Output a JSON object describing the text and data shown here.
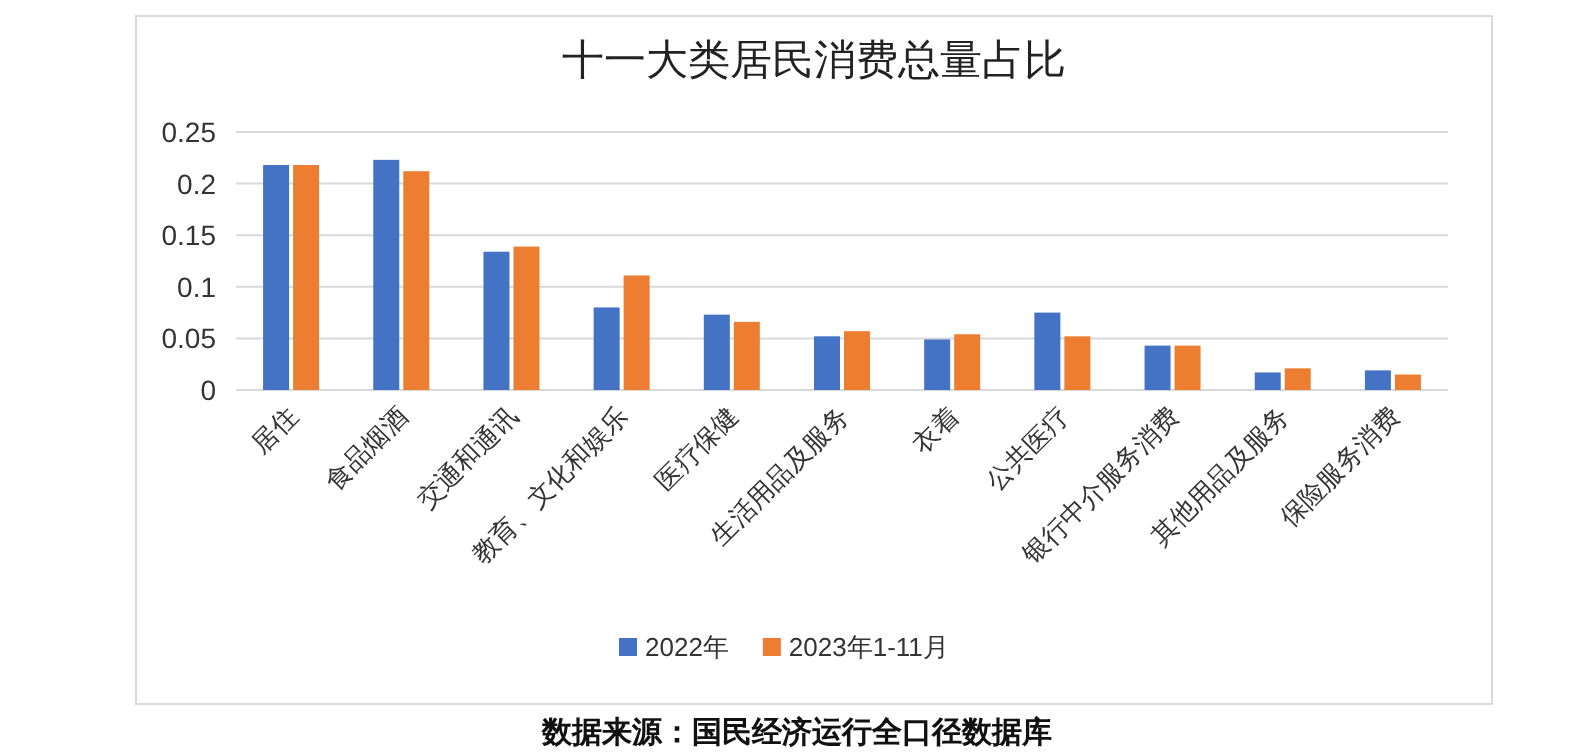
{
  "chart_data": {
    "type": "bar",
    "title": "十一大类居民消费总量占比",
    "categories": [
      "居住",
      "食品烟酒",
      "交通和通讯",
      "教育、文化和娱乐",
      "医疗保健",
      "生活用品及服务",
      "衣着",
      "公共医疗",
      "银行中介服务消费",
      "其他用品及服务",
      "保险服务消费"
    ],
    "series": [
      {
        "name": "2022年",
        "color": "#4472c4",
        "values": [
          0.218,
          0.223,
          0.134,
          0.08,
          0.073,
          0.052,
          0.049,
          0.075,
          0.043,
          0.017,
          0.019
        ]
      },
      {
        "name": "2023年1-11月",
        "color": "#ed7d31",
        "values": [
          0.218,
          0.212,
          0.139,
          0.111,
          0.066,
          0.057,
          0.054,
          0.052,
          0.043,
          0.021,
          0.015
        ]
      }
    ],
    "ylim": [
      0,
      0.25
    ],
    "yticks": [
      0,
      0.05,
      0.1,
      0.15,
      0.2,
      0.25
    ],
    "grid": "y",
    "legend": "bottom",
    "annotations": [
      "数据来源：国民经济运行全口径数据库"
    ]
  }
}
